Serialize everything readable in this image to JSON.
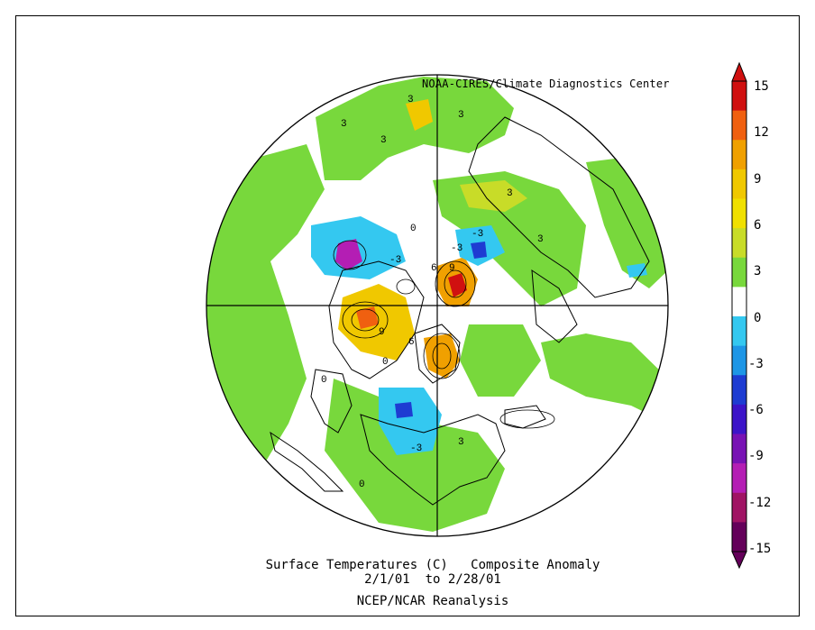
{
  "header": {
    "credit": "NOAA-CIRES/Climate Diagnostics Center"
  },
  "captions": {
    "title": "Surface Temperatures (C)   Composite Anomaly",
    "dates": "2/1/01  to 2/28/01",
    "source": "NCEP/NCAR Reanalysis"
  },
  "colorbar": {
    "labels": [
      "15",
      "12",
      "9",
      "6",
      "3",
      "0",
      "-3",
      "-6",
      "-9",
      "-12",
      "-15"
    ],
    "colors": [
      "#d01010",
      "#f06010",
      "#f0a000",
      "#f0c800",
      "#f0e000",
      "#c8dc28",
      "#78d83c",
      "#ffffff",
      "#34c8f0",
      "#1e96e6",
      "#1e3cd2",
      "#3c14c8",
      "#7812b4",
      "#b41eb4",
      "#a01464",
      "#64005a"
    ]
  },
  "map_labels": [
    {
      "text": "3"
    },
    {
      "text": "3"
    },
    {
      "text": "3"
    },
    {
      "text": "3"
    },
    {
      "text": "3"
    },
    {
      "text": "-3"
    },
    {
      "text": "-3"
    },
    {
      "text": "-3"
    },
    {
      "text": "0"
    },
    {
      "text": "0"
    },
    {
      "text": "6"
    },
    {
      "text": "9"
    },
    {
      "text": "3"
    },
    {
      "text": "-3"
    },
    {
      "text": "0"
    },
    {
      "text": "0"
    },
    {
      "text": "3"
    },
    {
      "text": "9"
    },
    {
      "text": "6"
    }
  ],
  "colors": {
    "land_green": "#78d83c",
    "ocean_white": "#ffffff",
    "frame": "#000000"
  }
}
